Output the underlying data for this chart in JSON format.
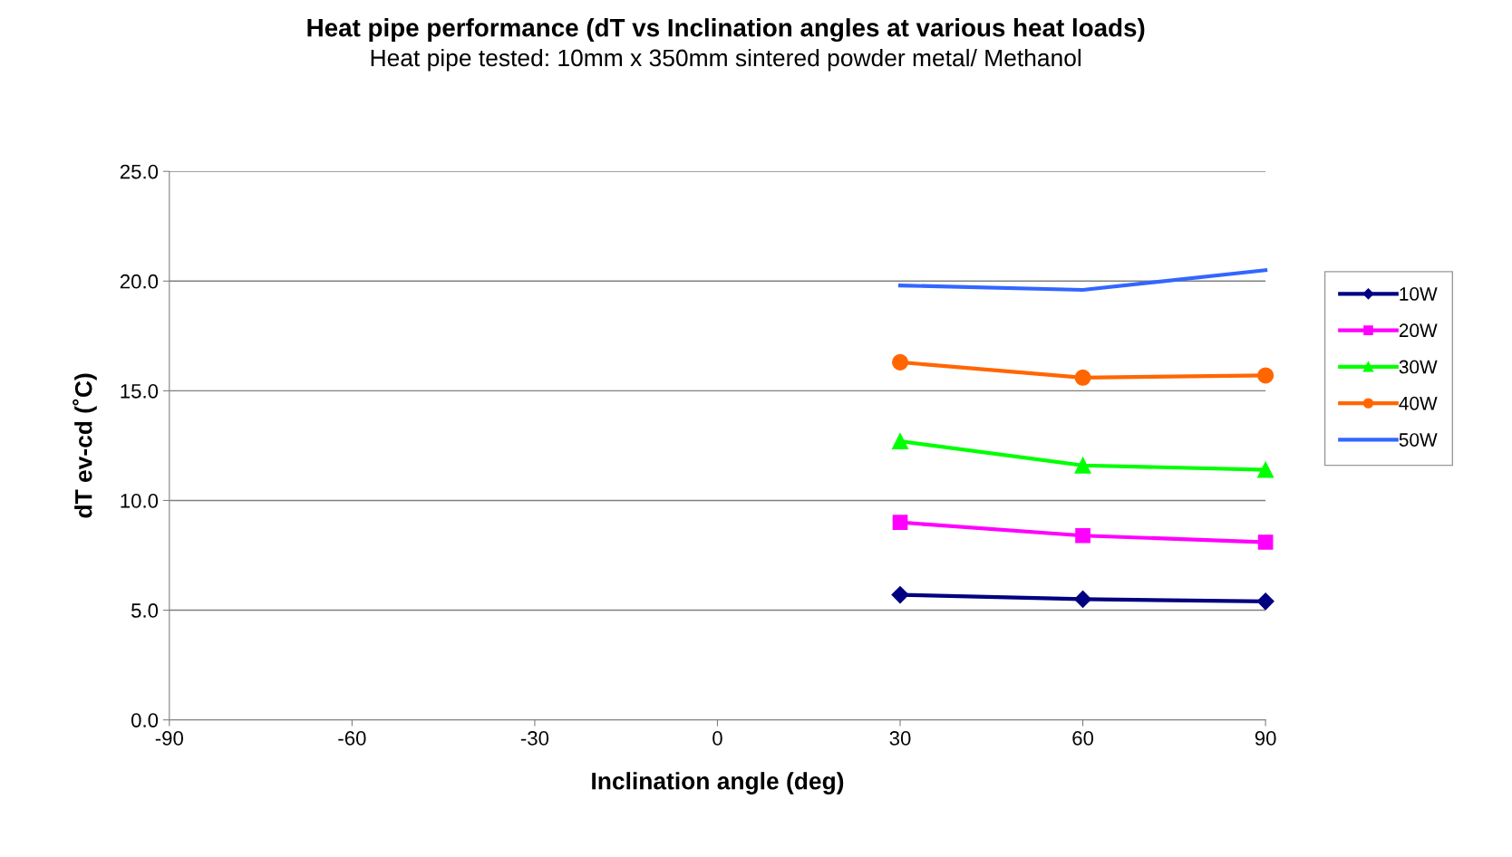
{
  "chart_data": {
    "type": "line",
    "title": "Heat pipe performance (dT vs Inclination angles at various heat loads)",
    "subtitle": "Heat pipe tested: 10mm x 350mm sintered powder metal/ Methanol",
    "xlabel": "Inclination angle (deg)",
    "ylabel": "dT ev-cd (˚C)",
    "x": [
      30,
      60,
      90
    ],
    "series": [
      {
        "name": "10W",
        "color": "#000080",
        "marker": "diamond",
        "values": [
          5.7,
          5.5,
          5.4
        ]
      },
      {
        "name": "20W",
        "color": "#ff00ff",
        "marker": "square",
        "values": [
          9.0,
          8.4,
          8.1
        ]
      },
      {
        "name": "30W",
        "color": "#00ff00",
        "marker": "triangle",
        "values": [
          12.7,
          11.6,
          11.4
        ]
      },
      {
        "name": "40W",
        "color": "#ff6600",
        "marker": "circle",
        "values": [
          16.3,
          15.6,
          15.7
        ]
      },
      {
        "name": "50W",
        "color": "#3366ff",
        "marker": "none",
        "values": [
          19.8,
          19.6,
          20.5
        ]
      }
    ],
    "xlim": [
      -90,
      90
    ],
    "xticks": [
      -90,
      -60,
      -30,
      0,
      30,
      60,
      90
    ],
    "ylim": [
      0,
      25
    ],
    "yticks": [
      {
        "value": 0,
        "label": "0.0"
      },
      {
        "value": 5,
        "label": "5.0"
      },
      {
        "value": 10,
        "label": "10.0"
      },
      {
        "value": 15,
        "label": "15.0"
      },
      {
        "value": 20,
        "label": "20.0"
      },
      {
        "value": 25,
        "label": "25.0"
      }
    ],
    "grid": "y",
    "legend": "right",
    "line_style": "solid"
  }
}
